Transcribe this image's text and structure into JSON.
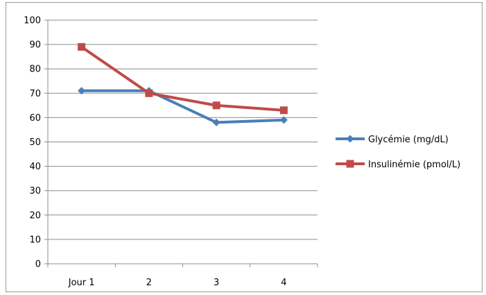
{
  "chart_data": {
    "type": "line",
    "categories": [
      "Jour 1",
      "2",
      "3",
      "4"
    ],
    "y_ticks": [
      "0",
      "10",
      "20",
      "30",
      "40",
      "50",
      "60",
      "70",
      "80",
      "90",
      "100"
    ],
    "ylim": [
      0,
      100
    ],
    "grid": true,
    "legend_position": "right",
    "series": [
      {
        "name": "Glycémie (mg/dL)",
        "values": [
          71,
          71,
          58,
          59
        ],
        "color": "#4a7ebb",
        "marker": "diamond"
      },
      {
        "name": "Insulinémie (pmol/L)",
        "values": [
          89,
          70,
          65,
          63
        ],
        "color": "#be4b48",
        "marker": "square"
      }
    ]
  }
}
